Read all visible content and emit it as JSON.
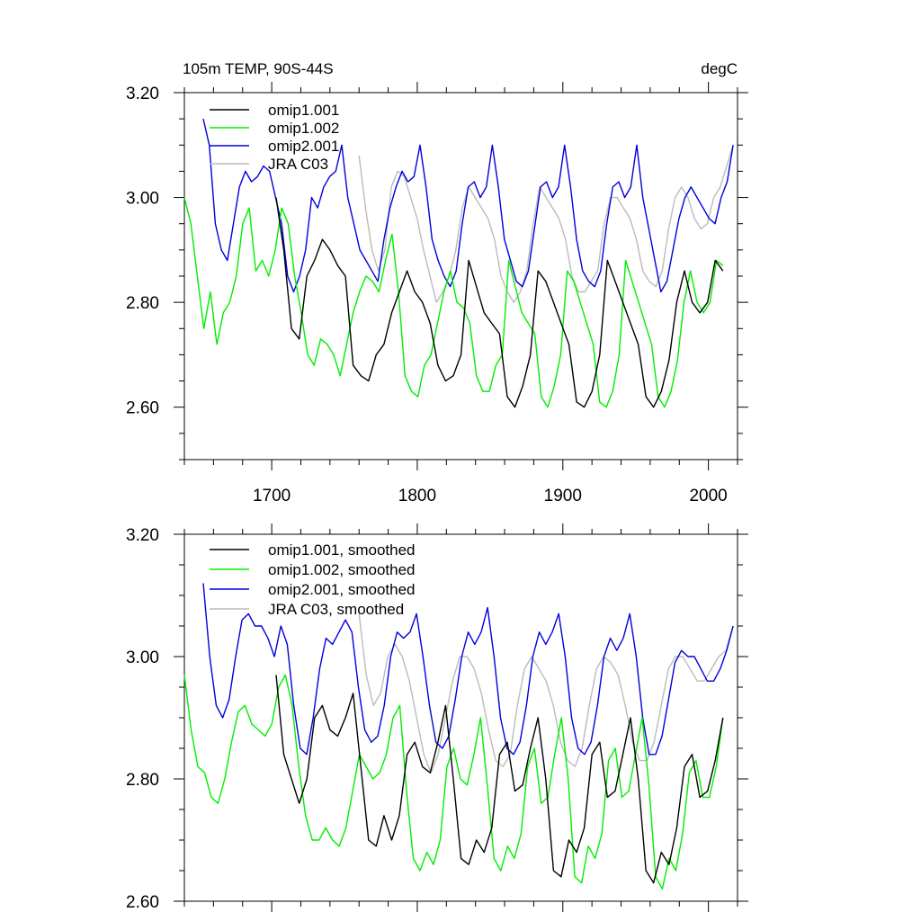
{
  "chart_data": [
    {
      "type": "line",
      "title": "105m TEMP, 90S-44S",
      "units": "degC",
      "xlim": [
        1640,
        2020
      ],
      "ylim": [
        2.5,
        3.2
      ],
      "xticks": [
        1700,
        1800,
        1900,
        2000
      ],
      "xtick_labels": [
        "1700",
        "1800",
        "1900",
        "2000"
      ],
      "yticks": [
        2.6,
        2.8,
        3.0,
        3.2
      ],
      "ytick_labels": [
        "2.60",
        "2.80",
        "3.00",
        "3.20"
      ],
      "legend": "top-left",
      "series": [
        {
          "name": "omip1.001",
          "color": "#000000",
          "start": 1703,
          "end": 2010,
          "values": [
            3.0,
            2.9,
            2.75,
            2.73,
            2.85,
            2.88,
            2.92,
            2.9,
            2.87,
            2.85,
            2.68,
            2.66,
            2.65,
            2.7,
            2.72,
            2.78,
            2.82,
            2.86,
            2.82,
            2.8,
            2.76,
            2.68,
            2.65,
            2.66,
            2.7,
            2.88,
            2.83,
            2.78,
            2.76,
            2.74,
            2.62,
            2.6,
            2.64,
            2.7,
            2.86,
            2.84,
            2.8,
            2.76,
            2.72,
            2.61,
            2.6,
            2.63,
            2.7,
            2.88,
            2.84,
            2.8,
            2.76,
            2.72,
            2.62,
            2.6,
            2.63,
            2.69,
            2.8,
            2.86,
            2.8,
            2.78,
            2.8,
            2.88,
            2.86
          ]
        },
        {
          "name": "omip1.002",
          "color": "#00ee00",
          "start": 1640,
          "end": 2010,
          "values": [
            3.0,
            2.95,
            2.85,
            2.75,
            2.82,
            2.72,
            2.78,
            2.8,
            2.85,
            2.95,
            2.98,
            2.86,
            2.88,
            2.85,
            2.9,
            2.98,
            2.95,
            2.85,
            2.78,
            2.7,
            2.68,
            2.73,
            2.72,
            2.7,
            2.66,
            2.72,
            2.78,
            2.82,
            2.85,
            2.84,
            2.82,
            2.88,
            2.93,
            2.82,
            2.66,
            2.63,
            2.62,
            2.68,
            2.7,
            2.76,
            2.82,
            2.86,
            2.8,
            2.79,
            2.76,
            2.66,
            2.63,
            2.63,
            2.68,
            2.7,
            2.88,
            2.83,
            2.78,
            2.76,
            2.74,
            2.62,
            2.6,
            2.64,
            2.7,
            2.86,
            2.84,
            2.8,
            2.76,
            2.72,
            2.61,
            2.6,
            2.63,
            2.7,
            2.88,
            2.84,
            2.8,
            2.76,
            2.72,
            2.62,
            2.6,
            2.63,
            2.69,
            2.8,
            2.86,
            2.8,
            2.78,
            2.8,
            2.88,
            2.87
          ]
        },
        {
          "name": "omip2.001",
          "color": "#0000dd",
          "start": 1653,
          "end": 2017,
          "values": [
            3.15,
            3.1,
            2.95,
            2.9,
            2.88,
            2.95,
            3.02,
            3.05,
            3.03,
            3.04,
            3.06,
            3.05,
            3.0,
            2.95,
            2.85,
            2.82,
            2.85,
            2.9,
            3.0,
            2.98,
            3.02,
            3.04,
            3.05,
            3.1,
            3.0,
            2.95,
            2.9,
            2.88,
            2.86,
            2.84,
            2.92,
            2.98,
            3.02,
            3.05,
            3.03,
            3.04,
            3.1,
            3.02,
            2.92,
            2.88,
            2.85,
            2.83,
            2.86,
            2.95,
            3.02,
            3.03,
            3.0,
            3.02,
            3.1,
            3.02,
            2.92,
            2.88,
            2.84,
            2.83,
            2.86,
            2.94,
            3.02,
            3.03,
            3.0,
            3.02,
            3.1,
            3.02,
            2.92,
            2.86,
            2.84,
            2.83,
            2.86,
            2.95,
            3.02,
            3.03,
            3.0,
            3.02,
            3.1,
            3.0,
            2.94,
            2.88,
            2.82,
            2.84,
            2.9,
            2.96,
            3.0,
            3.02,
            3.0,
            2.98,
            2.96,
            2.95,
            3.0,
            3.03,
            3.1
          ]
        },
        {
          "name": "JRA C03",
          "color": "#bbbbbb",
          "start": 1760,
          "end": 2017,
          "values": [
            3.08,
            2.98,
            2.9,
            2.86,
            2.9,
            3.02,
            3.05,
            3.04,
            3.0,
            2.96,
            2.9,
            2.85,
            2.8,
            2.82,
            2.85,
            2.9,
            2.98,
            3.02,
            3.0,
            2.98,
            2.96,
            2.92,
            2.85,
            2.82,
            2.8,
            2.82,
            2.86,
            2.95,
            3.02,
            3.0,
            2.98,
            2.96,
            2.92,
            2.85,
            2.82,
            2.82,
            2.84,
            2.86,
            2.95,
            3.0,
            3.0,
            2.98,
            2.96,
            2.92,
            2.86,
            2.84,
            2.83,
            2.86,
            2.94,
            3.0,
            3.02,
            3.0,
            2.96,
            2.94,
            2.95,
            3.0,
            3.02,
            3.06,
            3.1
          ]
        }
      ]
    },
    {
      "type": "line",
      "xlim": [
        1640,
        2020
      ],
      "ylim": [
        2.6,
        3.2
      ],
      "yticks": [
        2.6,
        2.8,
        3.0,
        3.2
      ],
      "ytick_labels": [
        "2.60",
        "2.80",
        "3.00",
        "3.20"
      ],
      "legend": "top-left",
      "series": [
        {
          "name": "omip1.001, smoothed",
          "color": "#000000",
          "start": 1703,
          "end": 2010,
          "values": [
            2.97,
            2.84,
            2.8,
            2.76,
            2.8,
            2.9,
            2.92,
            2.88,
            2.87,
            2.9,
            2.94,
            2.82,
            2.7,
            2.69,
            2.74,
            2.7,
            2.74,
            2.84,
            2.86,
            2.82,
            2.81,
            2.86,
            2.92,
            2.8,
            2.67,
            2.66,
            2.7,
            2.68,
            2.72,
            2.84,
            2.86,
            2.78,
            2.79,
            2.85,
            2.9,
            2.8,
            2.65,
            2.64,
            2.7,
            2.68,
            2.72,
            2.84,
            2.86,
            2.77,
            2.78,
            2.84,
            2.9,
            2.8,
            2.65,
            2.63,
            2.68,
            2.66,
            2.72,
            2.82,
            2.84,
            2.77,
            2.78,
            2.83,
            2.9
          ]
        },
        {
          "name": "omip1.002, smoothed",
          "color": "#00ee00",
          "start": 1640,
          "end": 2010,
          "values": [
            2.97,
            2.88,
            2.82,
            2.81,
            2.77,
            2.76,
            2.8,
            2.86,
            2.91,
            2.92,
            2.89,
            2.88,
            2.87,
            2.89,
            2.95,
            2.97,
            2.92,
            2.82,
            2.74,
            2.7,
            2.7,
            2.72,
            2.7,
            2.69,
            2.72,
            2.78,
            2.84,
            2.82,
            2.8,
            2.81,
            2.84,
            2.9,
            2.92,
            2.78,
            2.67,
            2.65,
            2.68,
            2.66,
            2.7,
            2.82,
            2.85,
            2.8,
            2.79,
            2.84,
            2.9,
            2.79,
            2.67,
            2.65,
            2.69,
            2.67,
            2.71,
            2.82,
            2.85,
            2.76,
            2.77,
            2.84,
            2.9,
            2.8,
            2.64,
            2.63,
            2.69,
            2.67,
            2.71,
            2.83,
            2.85,
            2.77,
            2.78,
            2.84,
            2.9,
            2.79,
            2.64,
            2.62,
            2.67,
            2.65,
            2.71,
            2.81,
            2.83,
            2.77,
            2.77,
            2.82,
            2.9
          ]
        },
        {
          "name": "omip2.001, smoothed",
          "color": "#0000dd",
          "start": 1653,
          "end": 2017,
          "values": [
            3.12,
            3.0,
            2.92,
            2.9,
            2.93,
            3.0,
            3.06,
            3.07,
            3.05,
            3.05,
            3.03,
            3.0,
            3.05,
            3.02,
            2.92,
            2.85,
            2.84,
            2.9,
            2.98,
            3.03,
            3.02,
            3.04,
            3.06,
            3.04,
            2.95,
            2.88,
            2.86,
            2.87,
            2.92,
            3.0,
            3.04,
            3.03,
            3.04,
            3.07,
            3.0,
            2.92,
            2.86,
            2.85,
            2.87,
            2.93,
            3.0,
            3.04,
            3.02,
            3.04,
            3.08,
            3.0,
            2.9,
            2.85,
            2.84,
            2.86,
            2.92,
            3.0,
            3.04,
            3.02,
            3.04,
            3.07,
            3.0,
            2.9,
            2.85,
            2.84,
            2.86,
            2.92,
            3.0,
            3.03,
            3.01,
            3.03,
            3.07,
            3.0,
            2.9,
            2.84,
            2.84,
            2.87,
            2.93,
            2.99,
            3.01,
            3.0,
            3.0,
            2.98,
            2.96,
            2.96,
            2.98,
            3.01,
            3.05
          ]
        },
        {
          "name": "JRA C03, smoothed",
          "color": "#bbbbbb",
          "start": 1760,
          "end": 2017,
          "values": [
            3.07,
            2.97,
            2.92,
            2.94,
            3.0,
            3.02,
            3.0,
            2.96,
            2.9,
            2.84,
            2.81,
            2.84,
            2.9,
            2.96,
            3.0,
            3.0,
            2.98,
            2.94,
            2.88,
            2.83,
            2.82,
            2.84,
            2.92,
            2.98,
            3.0,
            2.98,
            2.96,
            2.92,
            2.86,
            2.83,
            2.82,
            2.85,
            2.92,
            2.98,
            3.0,
            2.99,
            2.97,
            2.92,
            2.86,
            2.83,
            2.83,
            2.86,
            2.92,
            2.98,
            3.0,
            3.0,
            2.98,
            2.96,
            2.96,
            2.98,
            3.0,
            3.01,
            3.05
          ]
        }
      ]
    }
  ]
}
